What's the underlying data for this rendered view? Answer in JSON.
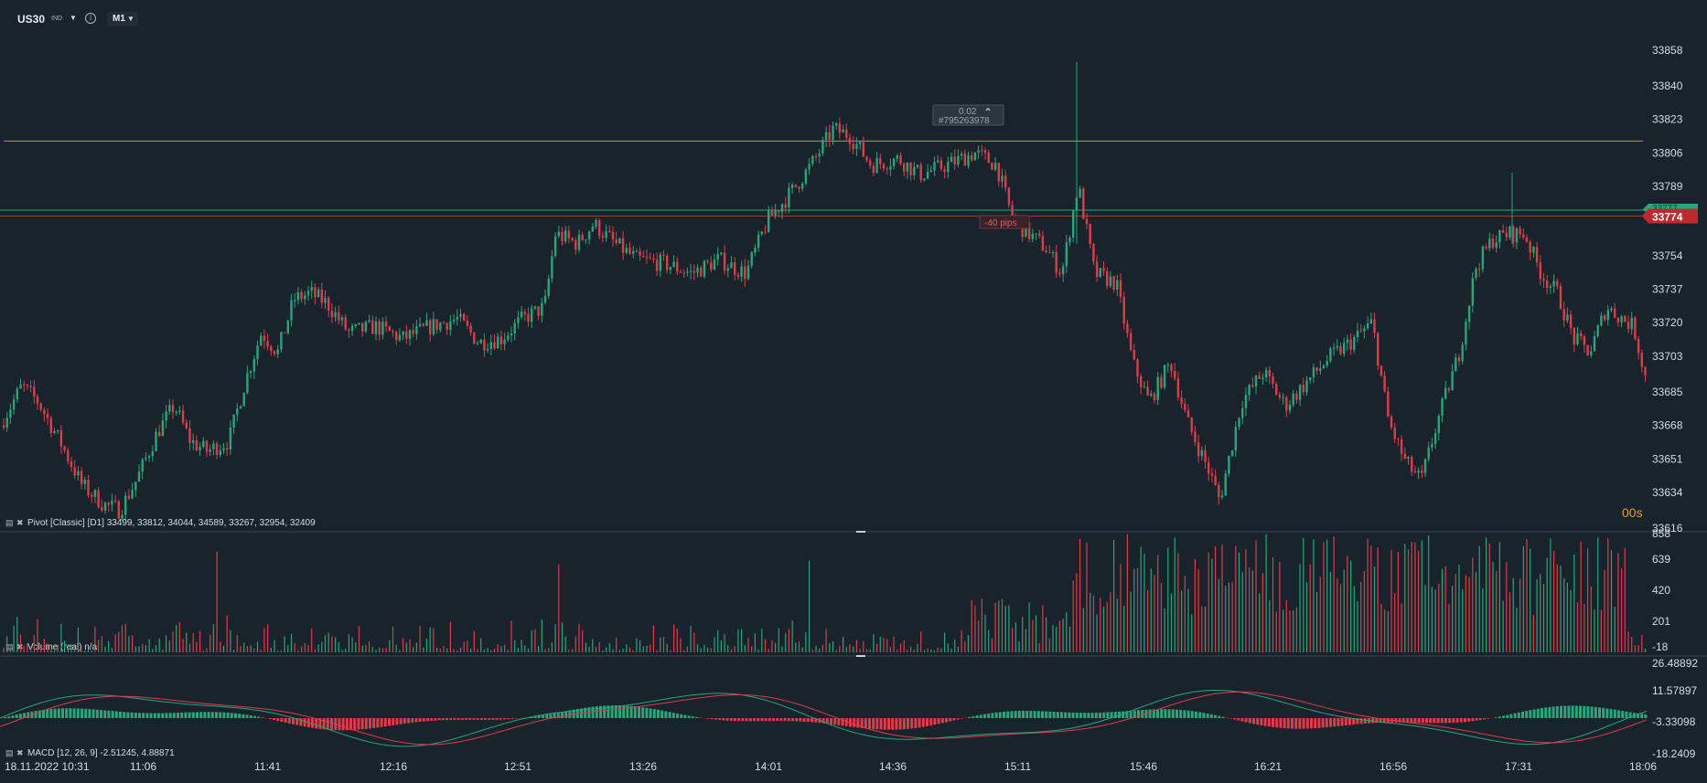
{
  "toolbar": {
    "symbol": "US30",
    "symbol_type": "IND",
    "timeframe": "M1"
  },
  "colors": {
    "background": "#19232b",
    "up": "#26a67a",
    "down": "#e03b4a",
    "pivot_line": "#c8903c",
    "green_line": "#26a67a",
    "red_line": "#c0282f",
    "text": "#d6dde3",
    "grid_sep": "#3a4650"
  },
  "price_labels": [
    "33858",
    "33840",
    "33823",
    "33806",
    "33789",
    "33754",
    "33737",
    "33720",
    "33703",
    "33685",
    "33668",
    "33651",
    "33634",
    "33616"
  ],
  "current_price": "33774",
  "hidden_price_tag": "33777",
  "countdown": "00s",
  "trade_box": {
    "lots": "0.02",
    "ticket": "#795263978"
  },
  "pips_label": "-40 pips",
  "indicators": {
    "pivot": "Pivot [Classic] [D1] 33499, 33812, 34044, 34589, 33267, 32954, 32409",
    "volume": "Volume (real) n/a",
    "macd": "MACD [12, 26, 9] -2.51245, 4.88871"
  },
  "volume_labels": [
    "858",
    "639",
    "420",
    "201",
    "-18"
  ],
  "macd_labels": [
    "26.48892",
    "11.57897",
    "-3.33098",
    "-18.2409"
  ],
  "time_labels": [
    "18.11.2022 10:31",
    "11:06",
    "11:41",
    "12:16",
    "12:51",
    "13:26",
    "14:01",
    "14:36",
    "15:11",
    "15:46",
    "16:21",
    "16:56",
    "17:31",
    "18:06"
  ],
  "chart_data": {
    "type": "candlestick",
    "y_axis_range": [
      33616,
      33858
    ],
    "levels": {
      "pivot_r1": 33812,
      "bid": 33774,
      "ask": 33777
    },
    "close_path": [
      {
        "x": 0,
        "y": 33668
      },
      {
        "x": 20,
        "y": 33688
      },
      {
        "x": 35,
        "y": 33680
      },
      {
        "x": 55,
        "y": 33660
      },
      {
        "x": 75,
        "y": 33638
      },
      {
        "x": 95,
        "y": 33628
      },
      {
        "x": 110,
        "y": 33625
      },
      {
        "x": 125,
        "y": 33640
      },
      {
        "x": 145,
        "y": 33665
      },
      {
        "x": 160,
        "y": 33678
      },
      {
        "x": 175,
        "y": 33660
      },
      {
        "x": 190,
        "y": 33655
      },
      {
        "x": 210,
        "y": 33660
      },
      {
        "x": 225,
        "y": 33690
      },
      {
        "x": 240,
        "y": 33715
      },
      {
        "x": 255,
        "y": 33705
      },
      {
        "x": 270,
        "y": 33732
      },
      {
        "x": 285,
        "y": 33735
      },
      {
        "x": 300,
        "y": 33730
      },
      {
        "x": 320,
        "y": 33715
      },
      {
        "x": 345,
        "y": 33718
      },
      {
        "x": 370,
        "y": 33712
      },
      {
        "x": 395,
        "y": 33718
      },
      {
        "x": 420,
        "y": 33722
      },
      {
        "x": 440,
        "y": 33710
      },
      {
        "x": 460,
        "y": 33712
      },
      {
        "x": 480,
        "y": 33722
      },
      {
        "x": 500,
        "y": 33728
      },
      {
        "x": 510,
        "y": 33765
      },
      {
        "x": 530,
        "y": 33760
      },
      {
        "x": 545,
        "y": 33770
      },
      {
        "x": 565,
        "y": 33760
      },
      {
        "x": 585,
        "y": 33752
      },
      {
        "x": 610,
        "y": 33750
      },
      {
        "x": 635,
        "y": 33745
      },
      {
        "x": 660,
        "y": 33752
      },
      {
        "x": 685,
        "y": 33745
      },
      {
        "x": 705,
        "y": 33772
      },
      {
        "x": 725,
        "y": 33785
      },
      {
        "x": 745,
        "y": 33800
      },
      {
        "x": 765,
        "y": 33818
      },
      {
        "x": 780,
        "y": 33815
      },
      {
        "x": 800,
        "y": 33800
      },
      {
        "x": 825,
        "y": 33803
      },
      {
        "x": 845,
        "y": 33795
      },
      {
        "x": 870,
        "y": 33800
      },
      {
        "x": 895,
        "y": 33806
      },
      {
        "x": 915,
        "y": 33800
      },
      {
        "x": 930,
        "y": 33772
      },
      {
        "x": 945,
        "y": 33765
      },
      {
        "x": 960,
        "y": 33758
      },
      {
        "x": 975,
        "y": 33745
      },
      {
        "x": 990,
        "y": 33790
      },
      {
        "x": 1005,
        "y": 33745
      },
      {
        "x": 1025,
        "y": 33740
      },
      {
        "x": 1040,
        "y": 33700
      },
      {
        "x": 1055,
        "y": 33680
      },
      {
        "x": 1075,
        "y": 33700
      },
      {
        "x": 1090,
        "y": 33670
      },
      {
        "x": 1110,
        "y": 33645
      },
      {
        "x": 1120,
        "y": 33630
      },
      {
        "x": 1140,
        "y": 33680
      },
      {
        "x": 1160,
        "y": 33695
      },
      {
        "x": 1180,
        "y": 33678
      },
      {
        "x": 1200,
        "y": 33690
      },
      {
        "x": 1220,
        "y": 33702
      },
      {
        "x": 1240,
        "y": 33710
      },
      {
        "x": 1260,
        "y": 33720
      },
      {
        "x": 1275,
        "y": 33670
      },
      {
        "x": 1290,
        "y": 33650
      },
      {
        "x": 1305,
        "y": 33640
      },
      {
        "x": 1320,
        "y": 33670
      },
      {
        "x": 1340,
        "y": 33705
      },
      {
        "x": 1355,
        "y": 33748
      },
      {
        "x": 1370,
        "y": 33762
      },
      {
        "x": 1385,
        "y": 33765
      },
      {
        "x": 1400,
        "y": 33765
      },
      {
        "x": 1415,
        "y": 33745
      },
      {
        "x": 1430,
        "y": 33735
      },
      {
        "x": 1445,
        "y": 33712
      },
      {
        "x": 1460,
        "y": 33705
      },
      {
        "x": 1475,
        "y": 33728
      },
      {
        "x": 1490,
        "y": 33722
      },
      {
        "x": 1500,
        "y": 33718
      },
      {
        "x": 1512,
        "y": 33690
      }
    ]
  }
}
